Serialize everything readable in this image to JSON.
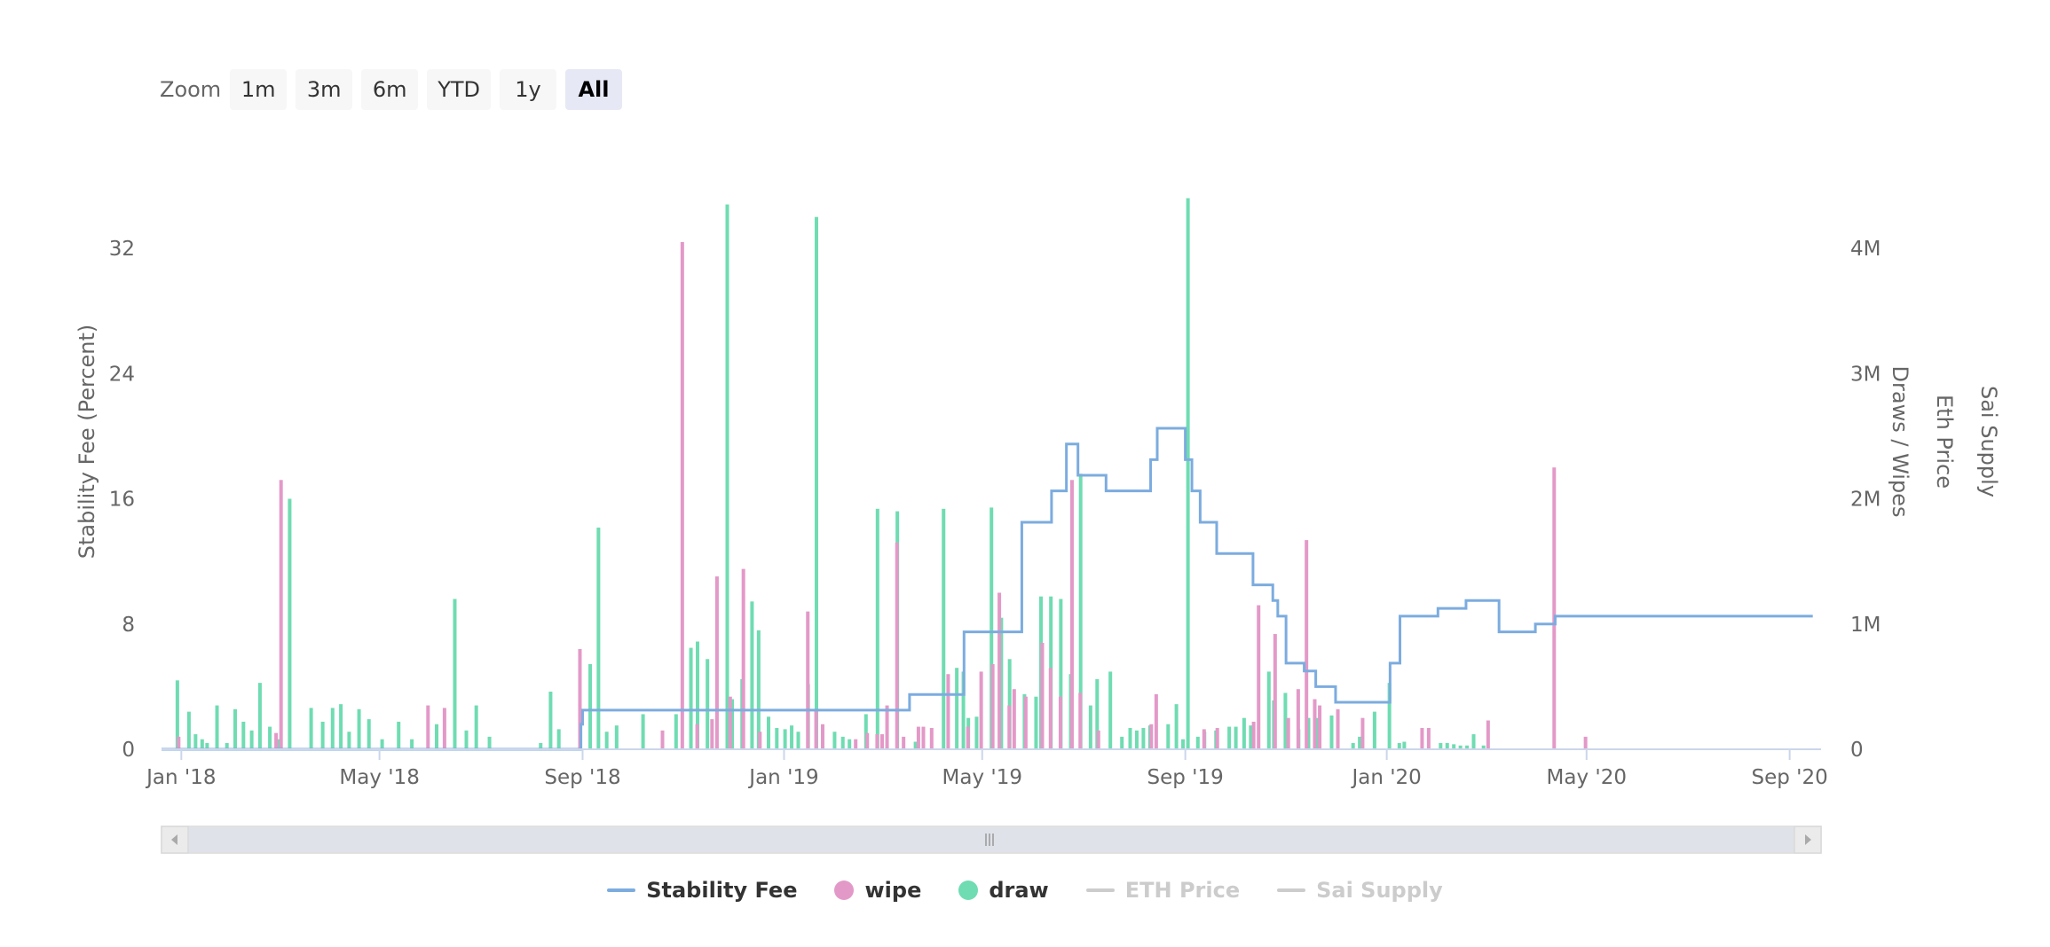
{
  "zoom": {
    "label": "Zoom",
    "buttons": [
      "1m",
      "3m",
      "6m",
      "YTD",
      "1y",
      "All"
    ],
    "active": "All"
  },
  "legend": [
    {
      "name": "Stability Fee",
      "symbol": "line",
      "color": "#7cacdf",
      "visible": true
    },
    {
      "name": "wipe",
      "symbol": "dot",
      "color": "#e399c8",
      "visible": true
    },
    {
      "name": "draw",
      "symbol": "dot",
      "color": "#6fdcb2",
      "visible": true
    },
    {
      "name": "ETH Price",
      "symbol": "line",
      "color": "#cccccc",
      "visible": false
    },
    {
      "name": "Sai Supply",
      "symbol": "line",
      "color": "#cccccc",
      "visible": false
    }
  ],
  "chart_data": {
    "type": "bar",
    "title": "",
    "xlabel": "",
    "ylabel_left": "Stability Fee (Percent)",
    "ylabels_right": [
      "Draws / Wipes",
      "Eth Price",
      "Sai Supply"
    ],
    "x_ticks": [
      "Jan '18",
      "May '18",
      "Sep '18",
      "Jan '19",
      "May '19",
      "Sep '19",
      "Jan '20",
      "May '20",
      "Sep '20"
    ],
    "x_tick_dates": [
      "2018-01-01",
      "2018-05-01",
      "2018-09-01",
      "2019-01-01",
      "2019-05-01",
      "2019-09-01",
      "2020-01-01",
      "2020-05-01",
      "2020-09-01"
    ],
    "xlim": [
      "2017-12-20",
      "2020-09-20"
    ],
    "y_left_ticks": [
      0,
      8,
      16,
      24,
      32
    ],
    "y_left_lim": [
      0,
      32
    ],
    "y_right_ticks": [
      "0",
      "1M",
      "2M",
      "3M",
      "4M"
    ],
    "y_right_lim": [
      0,
      4000000
    ],
    "grid": false,
    "legend_position": "bottom",
    "colors": {
      "stability_fee": "#7cacdf",
      "wipe": "#e399c8",
      "draw": "#6fdcb2"
    },
    "stability_fee": {
      "name": "Stability Fee",
      "x": [
        "2017-12-20",
        "2018-08-31",
        "2018-09-01",
        "2018-12-15",
        "2019-02-06",
        "2019-02-13",
        "2019-03-12",
        "2019-03-18",
        "2019-04-01",
        "2019-04-17",
        "2019-04-20",
        "2019-04-27",
        "2019-05-02",
        "2019-05-22",
        "2019-05-25",
        "2019-06-12",
        "2019-06-21",
        "2019-06-28",
        "2019-07-15",
        "2019-08-11",
        "2019-08-15",
        "2019-08-21",
        "2019-08-25",
        "2019-09-01",
        "2019-09-05",
        "2019-09-10",
        "2019-09-20",
        "2019-10-12",
        "2019-10-24",
        "2019-10-27",
        "2019-11-01",
        "2019-11-12",
        "2019-11-14",
        "2019-11-19",
        "2019-12-01",
        "2019-12-19",
        "2020-01-03",
        "2020-01-09",
        "2020-02-01",
        "2020-02-18",
        "2020-03-09",
        "2020-03-31",
        "2020-04-05",
        "2020-04-12",
        "2020-09-15"
      ],
      "y": [
        0,
        1.6,
        2.5,
        2.5,
        2.5,
        2.5,
        2.5,
        3.5,
        3.5,
        3.5,
        7.5,
        7.5,
        7.5,
        7.5,
        14.5,
        16.5,
        19.5,
        17.5,
        16.5,
        18.5,
        20.5,
        20.5,
        20.5,
        18.5,
        16.5,
        14.5,
        12.5,
        10.5,
        9.5,
        8.5,
        5.5,
        5,
        5,
        4,
        3,
        3,
        5.5,
        8.5,
        9,
        9.5,
        7.5,
        8,
        8,
        8.5,
        8.5
      ],
      "note_steps": "step"
    },
    "bars": [
      {
        "date": "2017-12-28",
        "draw": 0.55
      },
      {
        "date": "2018-01-01",
        "wipe": 0.1
      },
      {
        "date": "2018-01-04",
        "draw": 0.3
      },
      {
        "date": "2018-01-08",
        "draw": 0.12
      },
      {
        "date": "2018-01-12",
        "draw": 0.08
      },
      {
        "date": "2018-01-15",
        "draw": 0.05
      },
      {
        "date": "2018-01-21",
        "draw": 0.35
      },
      {
        "date": "2018-01-27",
        "draw": 0.05
      },
      {
        "date": "2018-02-01",
        "draw": 0.32
      },
      {
        "date": "2018-02-06",
        "draw": 0.22
      },
      {
        "date": "2018-02-11",
        "draw": 0.15
      },
      {
        "date": "2018-02-16",
        "draw": 0.53
      },
      {
        "date": "2018-02-22",
        "draw": 0.18
      },
      {
        "date": "2018-02-27",
        "draw": 0.08
      },
      {
        "date": "2018-03-01",
        "wipe": 0.13
      },
      {
        "date": "2018-03-04",
        "wipe": 2.15
      },
      {
        "date": "2018-03-06",
        "draw": 2.0
      },
      {
        "date": "2018-03-19",
        "draw": 0.33
      },
      {
        "date": "2018-03-26",
        "draw": 0.22
      },
      {
        "date": "2018-04-01",
        "draw": 0.33
      },
      {
        "date": "2018-04-06",
        "draw": 0.36
      },
      {
        "date": "2018-04-11",
        "draw": 0.14
      },
      {
        "date": "2018-04-17",
        "draw": 0.32
      },
      {
        "date": "2018-04-23",
        "draw": 0.24
      },
      {
        "date": "2018-05-01",
        "draw": 0.08
      },
      {
        "date": "2018-05-11",
        "draw": 0.22
      },
      {
        "date": "2018-05-19",
        "draw": 0.08
      },
      {
        "date": "2018-06-01",
        "wipe": 0.35
      },
      {
        "date": "2018-06-03",
        "draw": 0.2
      },
      {
        "date": "2018-06-11",
        "wipe": 0.33
      },
      {
        "date": "2018-06-14",
        "draw": 1.2
      },
      {
        "date": "2018-06-21",
        "draw": 0.15
      },
      {
        "date": "2018-06-27",
        "draw": 0.35
      },
      {
        "date": "2018-07-05",
        "draw": 0.1
      },
      {
        "date": "2018-08-05",
        "draw": 0.05
      },
      {
        "date": "2018-08-11",
        "draw": 0.46
      },
      {
        "date": "2018-08-16",
        "draw": 0.16
      },
      {
        "date": "2018-09-01",
        "wipe": 0.8
      },
      {
        "date": "2018-09-04",
        "draw": 0.68
      },
      {
        "date": "2018-09-09",
        "draw": 1.77
      },
      {
        "date": "2018-09-14",
        "draw": 0.14
      },
      {
        "date": "2018-09-20",
        "draw": 0.19
      },
      {
        "date": "2018-10-06",
        "draw": 0.28
      },
      {
        "date": "2018-10-21",
        "wipe": 0.15
      },
      {
        "date": "2018-10-26",
        "draw": 0.28
      },
      {
        "date": "2018-11-02",
        "wipe": 4.05
      },
      {
        "date": "2018-11-04",
        "draw": 0.81
      },
      {
        "date": "2018-11-08",
        "draw": 0.86
      },
      {
        "date": "2018-11-11",
        "wipe": 0.2
      },
      {
        "date": "2018-11-14",
        "draw": 0.72
      },
      {
        "date": "2018-11-20",
        "wipe": 0.24
      },
      {
        "date": "2018-11-23",
        "wipe": 1.38
      },
      {
        "date": "2018-11-26",
        "draw": 4.35
      },
      {
        "date": "2018-11-29",
        "draw": 0.4
      },
      {
        "date": "2018-12-01",
        "wipe": 0.42
      },
      {
        "date": "2018-12-05",
        "draw": 0.56
      },
      {
        "date": "2018-12-09",
        "wipe": 1.44
      },
      {
        "date": "2018-12-11",
        "draw": 1.18
      },
      {
        "date": "2018-12-15",
        "draw": 0.95
      },
      {
        "date": "2018-12-19",
        "wipe": 0.14
      },
      {
        "date": "2018-12-21",
        "draw": 0.26
      },
      {
        "date": "2018-12-26",
        "draw": 0.17
      },
      {
        "date": "2018-12-31",
        "draw": 0.16
      },
      {
        "date": "2019-01-04",
        "draw": 0.19
      },
      {
        "date": "2019-01-08",
        "draw": 0.14
      },
      {
        "date": "2019-01-14",
        "draw": 0.52
      },
      {
        "date": "2019-01-17",
        "wipe": 1.1
      },
      {
        "date": "2019-01-19",
        "draw": 4.25
      },
      {
        "date": "2019-01-22",
        "wipe": 0.32
      },
      {
        "date": "2019-01-26",
        "wipe": 0.2
      },
      {
        "date": "2019-01-30",
        "draw": 0.14
      },
      {
        "date": "2019-02-04",
        "draw": 0.1
      },
      {
        "date": "2019-02-08",
        "draw": 0.08
      },
      {
        "date": "2019-02-15",
        "wipe": 0.08
      },
      {
        "date": "2019-02-18",
        "draw": 0.28
      },
      {
        "date": "2019-02-22",
        "wipe": 0.13
      },
      {
        "date": "2019-02-25",
        "draw": 1.92
      },
      {
        "date": "2019-02-28",
        "wipe": 0.12
      },
      {
        "date": "2019-03-03",
        "wipe": 0.12
      },
      {
        "date": "2019-03-06",
        "wipe": 0.35
      },
      {
        "date": "2019-03-09",
        "draw": 1.9
      },
      {
        "date": "2019-03-12",
        "wipe": 1.65
      },
      {
        "date": "2019-03-16",
        "wipe": 0.1
      },
      {
        "date": "2019-03-20",
        "draw": 0.06
      },
      {
        "date": "2019-03-25",
        "wipe": 0.18
      },
      {
        "date": "2019-03-28",
        "wipe": 0.18
      },
      {
        "date": "2019-04-02",
        "wipe": 0.17
      },
      {
        "date": "2019-04-06",
        "draw": 1.92
      },
      {
        "date": "2019-04-12",
        "wipe": 0.6
      },
      {
        "date": "2019-04-14",
        "draw": 0.65
      },
      {
        "date": "2019-04-18",
        "draw": 0.62
      },
      {
        "date": "2019-04-21",
        "draw": 0.25
      },
      {
        "date": "2019-04-24",
        "wipe": 0.18
      },
      {
        "date": "2019-04-26",
        "draw": 0.26
      },
      {
        "date": "2019-05-02",
        "wipe": 0.62
      },
      {
        "date": "2019-05-05",
        "draw": 1.93
      },
      {
        "date": "2019-05-09",
        "wipe": 0.68
      },
      {
        "date": "2019-05-11",
        "draw": 1.05
      },
      {
        "date": "2019-05-13",
        "wipe": 1.25
      },
      {
        "date": "2019-05-16",
        "draw": 0.72
      },
      {
        "date": "2019-05-19",
        "wipe": 0.35
      },
      {
        "date": "2019-05-22",
        "wipe": 0.48
      },
      {
        "date": "2019-05-25",
        "draw": 0.44
      },
      {
        "date": "2019-05-29",
        "wipe": 0.42
      },
      {
        "date": "2019-06-01",
        "draw": 0.42
      },
      {
        "date": "2019-06-04",
        "draw": 1.22
      },
      {
        "date": "2019-06-08",
        "wipe": 0.85
      },
      {
        "date": "2019-06-10",
        "draw": 1.22
      },
      {
        "date": "2019-06-13",
        "wipe": 0.65
      },
      {
        "date": "2019-06-16",
        "draw": 1.2
      },
      {
        "date": "2019-06-19",
        "wipe": 0.42
      },
      {
        "date": "2019-06-22",
        "draw": 0.6
      },
      {
        "date": "2019-06-26",
        "wipe": 2.15
      },
      {
        "date": "2019-06-28",
        "draw": 2.2
      },
      {
        "date": "2019-07-01",
        "wipe": 0.45
      },
      {
        "date": "2019-07-04",
        "draw": 0.35
      },
      {
        "date": "2019-07-08",
        "draw": 0.56
      },
      {
        "date": "2019-07-12",
        "wipe": 0.15
      },
      {
        "date": "2019-07-16",
        "draw": 0.62
      },
      {
        "date": "2019-07-23",
        "draw": 0.1
      },
      {
        "date": "2019-07-28",
        "draw": 0.17
      },
      {
        "date": "2019-08-01",
        "draw": 0.15
      },
      {
        "date": "2019-08-05",
        "draw": 0.17
      },
      {
        "date": "2019-08-09",
        "draw": 0.19
      },
      {
        "date": "2019-08-13",
        "wipe": 0.2
      },
      {
        "date": "2019-08-16",
        "wipe": 0.44
      },
      {
        "date": "2019-08-20",
        "draw": 0.2
      },
      {
        "date": "2019-08-25",
        "draw": 0.36
      },
      {
        "date": "2019-08-29",
        "draw": 0.08
      },
      {
        "date": "2019-09-01",
        "draw": 4.4
      },
      {
        "date": "2019-09-07",
        "draw": 0.1
      },
      {
        "date": "2019-09-11",
        "draw": 0.14
      },
      {
        "date": "2019-09-14",
        "wipe": 0.16
      },
      {
        "date": "2019-09-18",
        "draw": 0.15
      },
      {
        "date": "2019-09-22",
        "wipe": 0.17
      },
      {
        "date": "2019-09-26",
        "draw": 0.18
      },
      {
        "date": "2019-09-30",
        "draw": 0.18
      },
      {
        "date": "2019-10-05",
        "draw": 0.25
      },
      {
        "date": "2019-10-09",
        "draw": 0.19
      },
      {
        "date": "2019-10-14",
        "wipe": 0.22
      },
      {
        "date": "2019-10-17",
        "wipe": 1.15
      },
      {
        "date": "2019-10-20",
        "draw": 0.62
      },
      {
        "date": "2019-10-23",
        "draw": 0.39
      },
      {
        "date": "2019-10-27",
        "wipe": 0.92
      },
      {
        "date": "2019-10-30",
        "draw": 0.45
      },
      {
        "date": "2019-11-04",
        "wipe": 0.25
      },
      {
        "date": "2019-11-07",
        "draw": 0.16
      },
      {
        "date": "2019-11-10",
        "wipe": 0.48
      },
      {
        "date": "2019-11-13",
        "draw": 0.25
      },
      {
        "date": "2019-11-15",
        "wipe": 1.67
      },
      {
        "date": "2019-11-18",
        "draw": 0.25
      },
      {
        "date": "2019-11-20",
        "wipe": 0.4
      },
      {
        "date": "2019-11-23",
        "wipe": 0.35
      },
      {
        "date": "2019-11-27",
        "draw": 0.27
      },
      {
        "date": "2019-12-04",
        "wipe": 0.32
      },
      {
        "date": "2019-12-10",
        "draw": 0.05
      },
      {
        "date": "2019-12-14",
        "draw": 0.1
      },
      {
        "date": "2019-12-19",
        "wipe": 0.25
      },
      {
        "date": "2019-12-23",
        "draw": 0.3
      },
      {
        "date": "2020-01-01",
        "draw": 0.53
      },
      {
        "date": "2020-01-07",
        "draw": 0.05
      },
      {
        "date": "2020-01-10",
        "draw": 0.06
      },
      {
        "date": "2020-01-24",
        "wipe": 0.17
      },
      {
        "date": "2020-01-28",
        "wipe": 0.17
      },
      {
        "date": "2020-02-01",
        "draw": 0.05
      },
      {
        "date": "2020-02-05",
        "draw": 0.05
      },
      {
        "date": "2020-02-09",
        "draw": 0.04
      },
      {
        "date": "2020-02-13",
        "draw": 0.03
      },
      {
        "date": "2020-02-17",
        "draw": 0.03
      },
      {
        "date": "2020-02-21",
        "draw": 0.12
      },
      {
        "date": "2020-02-27",
        "draw": 0.03
      },
      {
        "date": "2020-03-04",
        "wipe": 0.23
      },
      {
        "date": "2020-04-13",
        "wipe": 2.25
      },
      {
        "date": "2020-05-02",
        "wipe": 0.1
      }
    ]
  }
}
